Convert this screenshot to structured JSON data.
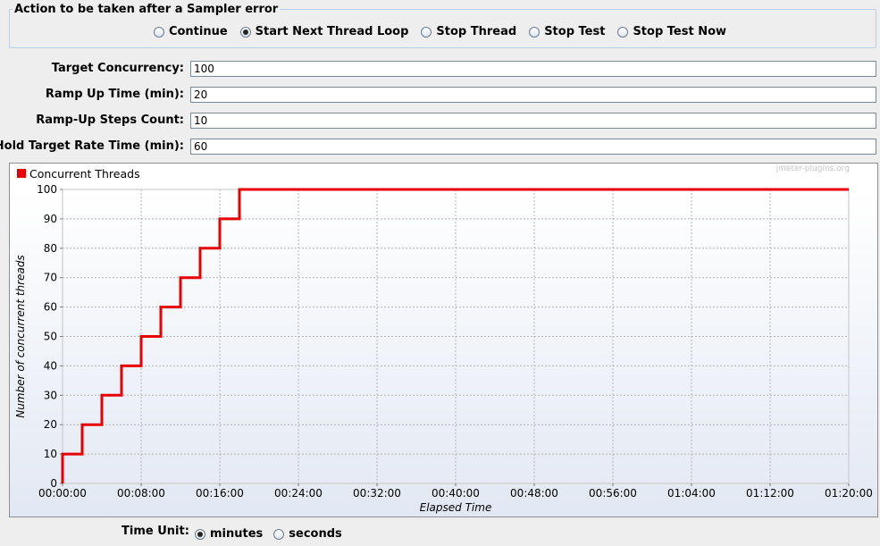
{
  "sampler_error": {
    "title": "Action to be taken after a Sampler error",
    "options": [
      {
        "label": "Continue",
        "checked": false
      },
      {
        "label": "Start Next Thread Loop",
        "checked": true
      },
      {
        "label": "Stop Thread",
        "checked": false
      },
      {
        "label": "Stop Test",
        "checked": false
      },
      {
        "label": "Stop Test Now",
        "checked": false
      }
    ]
  },
  "fields": {
    "target_concurrency": {
      "label": "Target Concurrency:",
      "value": "100"
    },
    "ramp_up_time": {
      "label": "Ramp Up Time (min):",
      "value": "20"
    },
    "ramp_up_steps": {
      "label": "Ramp-Up Steps Count:",
      "value": "10"
    },
    "hold_time": {
      "label": "Hold Target Rate Time (min):",
      "value": "60"
    }
  },
  "chart": {
    "watermark": "jmeter-plugins.org",
    "legend": "Concurrent Threads",
    "series_color": "#e80000"
  },
  "chart_data": {
    "type": "line",
    "title": "",
    "xlabel": "Elapsed Time",
    "ylabel": "Number of concurrent threads",
    "ylim": [
      0,
      100
    ],
    "xlim_minutes": [
      0,
      80
    ],
    "y_ticks": [
      "0",
      "10",
      "20",
      "30",
      "40",
      "50",
      "60",
      "70",
      "80",
      "90",
      "100"
    ],
    "x_ticks": [
      "00:00:00",
      "00:08:00",
      "00:16:00",
      "00:24:00",
      "00:32:00",
      "00:40:00",
      "00:48:00",
      "00:56:00",
      "01:04:00",
      "01:12:00",
      "01:20:00"
    ],
    "grid": true,
    "legend_position": "top-left",
    "series": [
      {
        "name": "Concurrent Threads",
        "x_minutes": [
          0,
          0,
          2,
          2,
          4,
          4,
          6,
          6,
          8,
          8,
          10,
          10,
          12,
          12,
          14,
          14,
          16,
          16,
          18,
          18,
          80
        ],
        "values": [
          0,
          10,
          10,
          20,
          20,
          30,
          30,
          40,
          40,
          50,
          50,
          60,
          60,
          70,
          70,
          80,
          80,
          90,
          90,
          100,
          100
        ]
      }
    ]
  },
  "time_unit": {
    "label": "Time Unit:",
    "options": [
      {
        "label": "minutes",
        "checked": true
      },
      {
        "label": "seconds",
        "checked": false
      }
    ]
  }
}
